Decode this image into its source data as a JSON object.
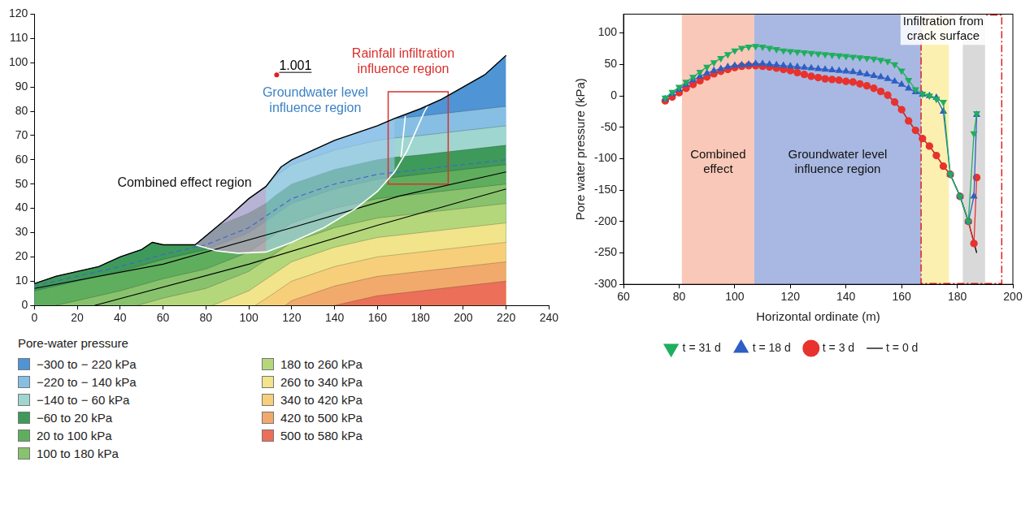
{
  "chart_data": [
    {
      "type": "area",
      "legend_title": "Pore-water pressure",
      "legend": "bottom",
      "grid": false,
      "xlim": [
        0,
        240
      ],
      "xticks": [
        0,
        20,
        40,
        60,
        80,
        100,
        120,
        140,
        160,
        180,
        200,
        220,
        240
      ],
      "ylim": [
        0,
        120
      ],
      "yticks": [
        0,
        10,
        20,
        30,
        40,
        50,
        60,
        70,
        80,
        90,
        100,
        110,
        120
      ],
      "series": [
        {
          "name": "−300 to − 220 kPa",
          "color": "#4f94d4",
          "x": [
            0,
            10,
            20,
            30,
            40,
            50,
            55,
            60,
            75,
            90,
            100,
            108,
            115,
            120,
            130,
            140,
            150,
            160,
            168,
            180,
            190,
            200,
            210,
            220
          ],
          "values": [
            9,
            12,
            14,
            16,
            20,
            23,
            26,
            25,
            25,
            36,
            44,
            49,
            57,
            60,
            64,
            68,
            71,
            74,
            77,
            81,
            85,
            90,
            95,
            103
          ]
        },
        {
          "name": "−220 to − 140 kPa",
          "color": "#86bfe3",
          "x": [
            0,
            10,
            20,
            30,
            40,
            50,
            55,
            60,
            75,
            90,
            100,
            108,
            115,
            120,
            130,
            140,
            150,
            160,
            168,
            180,
            190,
            200,
            210,
            220
          ],
          "values": [
            9,
            12,
            14,
            16,
            20,
            23,
            26,
            25,
            25,
            36,
            44,
            49,
            57,
            60,
            64,
            68,
            71,
            74,
            77,
            78,
            79,
            80,
            81,
            82
          ]
        },
        {
          "name": "−140 to − 60 kPa",
          "color": "#9fd6cf",
          "x": [
            0,
            10,
            20,
            30,
            40,
            50,
            55,
            60,
            75,
            90,
            100,
            108,
            112,
            120,
            130,
            140,
            150,
            160,
            168,
            180,
            190,
            200,
            210,
            220
          ],
          "values": [
            9,
            12,
            14,
            16,
            20,
            23,
            26,
            25,
            25,
            36,
            44,
            49,
            53,
            58,
            61,
            64,
            66,
            68,
            69,
            70,
            71,
            72,
            73,
            74
          ]
        },
        {
          "name": "−60 to 20 kPa",
          "color": "#3e9a5a",
          "x": [
            0,
            10,
            20,
            30,
            40,
            50,
            55,
            60,
            75,
            86,
            100,
            108,
            112,
            120,
            130,
            140,
            150,
            160,
            168,
            180,
            190,
            200,
            210,
            220
          ],
          "values": [
            9,
            12,
            14,
            16,
            20,
            23,
            26,
            25,
            25,
            33,
            38,
            42,
            45,
            50,
            53,
            56,
            58,
            60,
            61,
            62,
            63,
            64,
            65,
            66
          ]
        },
        {
          "name": "20 to 100 kPa",
          "color": "#5fae5e",
          "x": [
            0,
            20,
            40,
            60,
            80,
            100,
            110,
            120,
            140,
            160,
            180,
            200,
            220
          ],
          "values": [
            6,
            10,
            14,
            19,
            23,
            30,
            36,
            42,
            48,
            52,
            54,
            56,
            58
          ]
        },
        {
          "name": "100 to 180 kPa",
          "color": "#88c26d",
          "x": [
            10,
            20,
            40,
            60,
            80,
            100,
            110,
            120,
            140,
            160,
            180,
            200,
            220
          ],
          "values": [
            0,
            2,
            6,
            11,
            15,
            22,
            28,
            34,
            40,
            44,
            46,
            48,
            50
          ]
        },
        {
          "name": "180 to 260 kPa",
          "color": "#b5d77b",
          "x": [
            48,
            60,
            80,
            100,
            110,
            120,
            140,
            160,
            180,
            200,
            220
          ],
          "values": [
            0,
            3,
            7,
            14,
            20,
            26,
            32,
            36,
            38,
            40,
            42
          ]
        },
        {
          "name": "260 to 340 kPa",
          "color": "#f1e48a",
          "x": [
            83,
            100,
            110,
            120,
            140,
            160,
            180,
            200,
            220
          ],
          "values": [
            0,
            6,
            12,
            18,
            24,
            28,
            30,
            32,
            34
          ]
        },
        {
          "name": "340 to 420 kPa",
          "color": "#f7cf7a",
          "x": [
            103,
            110,
            120,
            140,
            160,
            180,
            200,
            220
          ],
          "values": [
            0,
            4,
            10,
            16,
            20,
            22,
            24,
            26
          ]
        },
        {
          "name": "420 to 500 kPa",
          "color": "#f2a96c",
          "x": [
            117,
            120,
            140,
            160,
            180,
            200,
            220
          ],
          "values": [
            0,
            2,
            8,
            12,
            14,
            16,
            18
          ]
        },
        {
          "name": "500 to 580 kPa",
          "color": "#ec6f5a",
          "x": [
            140,
            160,
            180,
            200,
            220
          ],
          "values": [
            0,
            4,
            6,
            8,
            10
          ]
        }
      ],
      "lines": [
        {
          "color": "#000000",
          "line_style": "solid",
          "x": [
            0,
            60,
            120,
            170,
            220
          ],
          "values": [
            7,
            17,
            32,
            45,
            55
          ]
        },
        {
          "color": "#000000",
          "line_style": "solid",
          "x": [
            28,
            100,
            160,
            220
          ],
          "values": [
            0,
            17,
            33,
            48
          ]
        },
        {
          "color": "#4a5fd0",
          "line_style": "dashed",
          "x": [
            0,
            20,
            40,
            60,
            80,
            100,
            110,
            120,
            140,
            160,
            180,
            200,
            220
          ],
          "values": [
            8,
            12,
            16,
            21,
            25,
            32,
            38,
            44,
            50,
            54,
            56,
            58,
            60
          ]
        },
        {
          "color": "#ffffff",
          "line_style": "solid",
          "x": [
            75,
            85,
            95,
            108,
            120,
            135,
            150,
            160,
            168,
            174,
            178,
            182,
            184
          ],
          "values": [
            25,
            22.5,
            21.5,
            22,
            26,
            32,
            40,
            47,
            55,
            64,
            72,
            80,
            83
          ]
        },
        {
          "color": "#ffffff",
          "line_style": "solid",
          "x": [
            171,
            173
          ],
          "values": [
            61,
            78
          ]
        }
      ],
      "regions": [
        {
          "type": "polygon",
          "color": "#c79bd9",
          "x": [
            75,
            90,
            100,
            108,
            108,
            95,
            85
          ],
          "values": [
            25,
            36,
            44,
            49,
            22,
            21.5,
            22.5
          ]
        },
        {
          "type": "polygon",
          "color": "#9ec9ef",
          "x": [
            108,
            115,
            120,
            130,
            140,
            150,
            160,
            168,
            168,
            160,
            150,
            135,
            120,
            108
          ],
          "values": [
            49,
            57,
            60,
            64,
            68,
            71,
            74,
            77,
            55,
            47,
            40,
            32,
            26,
            22
          ]
        },
        {
          "type": "box",
          "color": "#d9302c",
          "line_style": "solid",
          "x": [
            165,
            193,
            193,
            165
          ],
          "values": [
            50,
            50,
            88,
            88
          ]
        }
      ],
      "annotations": [
        {
          "text": "1.001",
          "x": 113,
          "y": 95,
          "marker": "dot",
          "color": "#000000"
        },
        {
          "text": "Combined effect region",
          "x": 70,
          "y": 49,
          "color": "#111111"
        },
        {
          "text": "Groundwater level influence region",
          "x": 131,
          "y": 86,
          "color": "#3b82c4"
        },
        {
          "text": "Rainfall infiltration influence region",
          "x": 172,
          "y": 102,
          "color": "#d9302c"
        }
      ]
    },
    {
      "type": "line",
      "x_label": "Horizontal ordinate (m)",
      "y_label": "Pore water pressure (kPa)",
      "legend": "bottom",
      "grid": false,
      "xlim": [
        60,
        200
      ],
      "xticks": [
        60,
        80,
        100,
        120,
        140,
        160,
        180,
        200
      ],
      "ylim": [
        -300,
        130
      ],
      "yticks": [
        -300,
        -250,
        -200,
        -150,
        -100,
        -50,
        0,
        50,
        100
      ],
      "series": [
        {
          "name": "t = 0 d",
          "color": "#000000",
          "marker": "none",
          "line_style": "solid",
          "x": [
            75,
            77.5,
            80,
            82.5,
            85,
            87.5,
            90,
            92.5,
            95,
            97.5,
            100,
            102.5,
            105,
            107.5,
            110,
            112.5,
            115,
            117.5,
            120,
            122.5,
            125,
            127.5,
            130,
            132.5,
            135,
            137.5,
            140,
            142.5,
            145,
            147.5,
            150,
            152.5,
            155,
            157.5,
            160,
            162.5,
            165,
            167.5,
            170,
            172.5,
            175,
            177.5,
            181,
            184,
            187
          ],
          "values": [
            -8,
            -2,
            5,
            12,
            18,
            24,
            30,
            35,
            39,
            42,
            45,
            47,
            48,
            48,
            47,
            46,
            44,
            42,
            40,
            37,
            34,
            31,
            29,
            27,
            26,
            25,
            23,
            22,
            19,
            16,
            12,
            7,
            1,
            -10,
            -22,
            -40,
            -55,
            -68,
            -80,
            -95,
            -112,
            -125,
            -160,
            -200,
            -250
          ]
        },
        {
          "name": "t = 3 d",
          "color": "#e8322d",
          "marker": "circle",
          "line_style": "solid",
          "x": [
            75,
            77.5,
            80,
            82.5,
            85,
            87.5,
            90,
            92.5,
            95,
            97.5,
            100,
            102.5,
            105,
            107.5,
            110,
            112.5,
            115,
            117.5,
            120,
            122.5,
            125,
            127.5,
            130,
            132.5,
            135,
            137.5,
            140,
            142.5,
            145,
            147.5,
            150,
            152.5,
            155,
            157.5,
            160,
            162.5,
            165,
            167.5,
            170,
            172.5,
            175,
            177.5,
            181,
            184,
            186,
            187
          ],
          "values": [
            -8,
            -2,
            5,
            12,
            18,
            24,
            30,
            35,
            39,
            42,
            45,
            47,
            48,
            48,
            47,
            46,
            44,
            42,
            40,
            37,
            34,
            31,
            29,
            27,
            26,
            25,
            23,
            22,
            19,
            16,
            12,
            7,
            1,
            -10,
            -22,
            -40,
            -55,
            -68,
            -80,
            -95,
            -112,
            -125,
            -160,
            -200,
            -235,
            -130
          ]
        },
        {
          "name": "t = 18 d",
          "color": "#2e5fc4",
          "marker": "triangle",
          "line_style": "solid",
          "x": [
            75,
            77.5,
            80,
            82.5,
            85,
            87.5,
            90,
            92.5,
            95,
            97.5,
            100,
            102.5,
            105,
            107.5,
            110,
            112.5,
            115,
            117.5,
            120,
            122.5,
            125,
            127.5,
            130,
            132.5,
            135,
            137.5,
            140,
            142.5,
            145,
            147.5,
            150,
            152.5,
            155,
            157.5,
            160,
            162.5,
            165,
            167.5,
            170,
            172.5,
            175,
            177.5,
            181,
            184,
            186,
            187
          ],
          "values": [
            -5,
            3,
            10,
            18,
            25,
            31,
            36,
            40,
            43,
            46,
            48,
            49,
            50,
            51,
            51,
            50,
            49,
            48,
            47,
            46,
            45,
            44,
            43,
            42,
            41,
            40,
            39,
            38,
            36,
            34,
            32,
            30,
            27,
            23,
            18,
            12,
            6,
            2,
            0,
            -3,
            -25,
            -125,
            -160,
            -200,
            -160,
            -30
          ]
        },
        {
          "name": "t = 31 d",
          "color": "#1fae5e",
          "marker": "triangle_down",
          "line_style": "solid",
          "x": [
            75,
            77.5,
            80,
            82.5,
            85,
            87.5,
            90,
            92.5,
            95,
            97.5,
            100,
            102.5,
            105,
            107.5,
            110,
            112.5,
            115,
            117.5,
            120,
            122.5,
            125,
            127.5,
            130,
            132.5,
            135,
            137.5,
            140,
            142.5,
            145,
            147.5,
            150,
            152.5,
            155,
            157.5,
            160,
            162.5,
            165,
            167.5,
            170,
            172.5,
            175,
            177.5,
            181,
            184,
            186,
            187
          ],
          "values": [
            -3,
            6,
            14,
            22,
            30,
            38,
            46,
            53,
            60,
            66,
            72,
            76,
            78,
            79,
            78,
            76,
            74,
            72,
            71,
            70,
            69,
            68,
            67,
            66,
            65,
            64,
            63,
            62,
            61,
            60,
            59,
            57,
            55,
            50,
            40,
            25,
            10,
            3,
            0,
            -5,
            -10,
            -125,
            -160,
            -200,
            -60,
            -28
          ]
        }
      ],
      "regions": [
        {
          "label": "Combined effect",
          "x": [
            81,
            107
          ],
          "y": -100,
          "color": "#f9c8b8"
        },
        {
          "label": "Groundwater level influence region",
          "x": [
            107,
            167
          ],
          "y": -100,
          "color": "#a9b8e2"
        },
        {
          "x": [
            167,
            177
          ],
          "color": "#fbf0b0"
        },
        {
          "x": [
            182,
            190
          ],
          "color": "#d9d9d9"
        },
        {
          "type": "box",
          "x": [
            167,
            196
          ],
          "color": "#e02020",
          "line_style": "dashdot"
        }
      ],
      "annotations": [
        {
          "text": "Infiltration from crack surface",
          "x": 175,
          "y": 112,
          "color": "#111111"
        }
      ]
    }
  ]
}
